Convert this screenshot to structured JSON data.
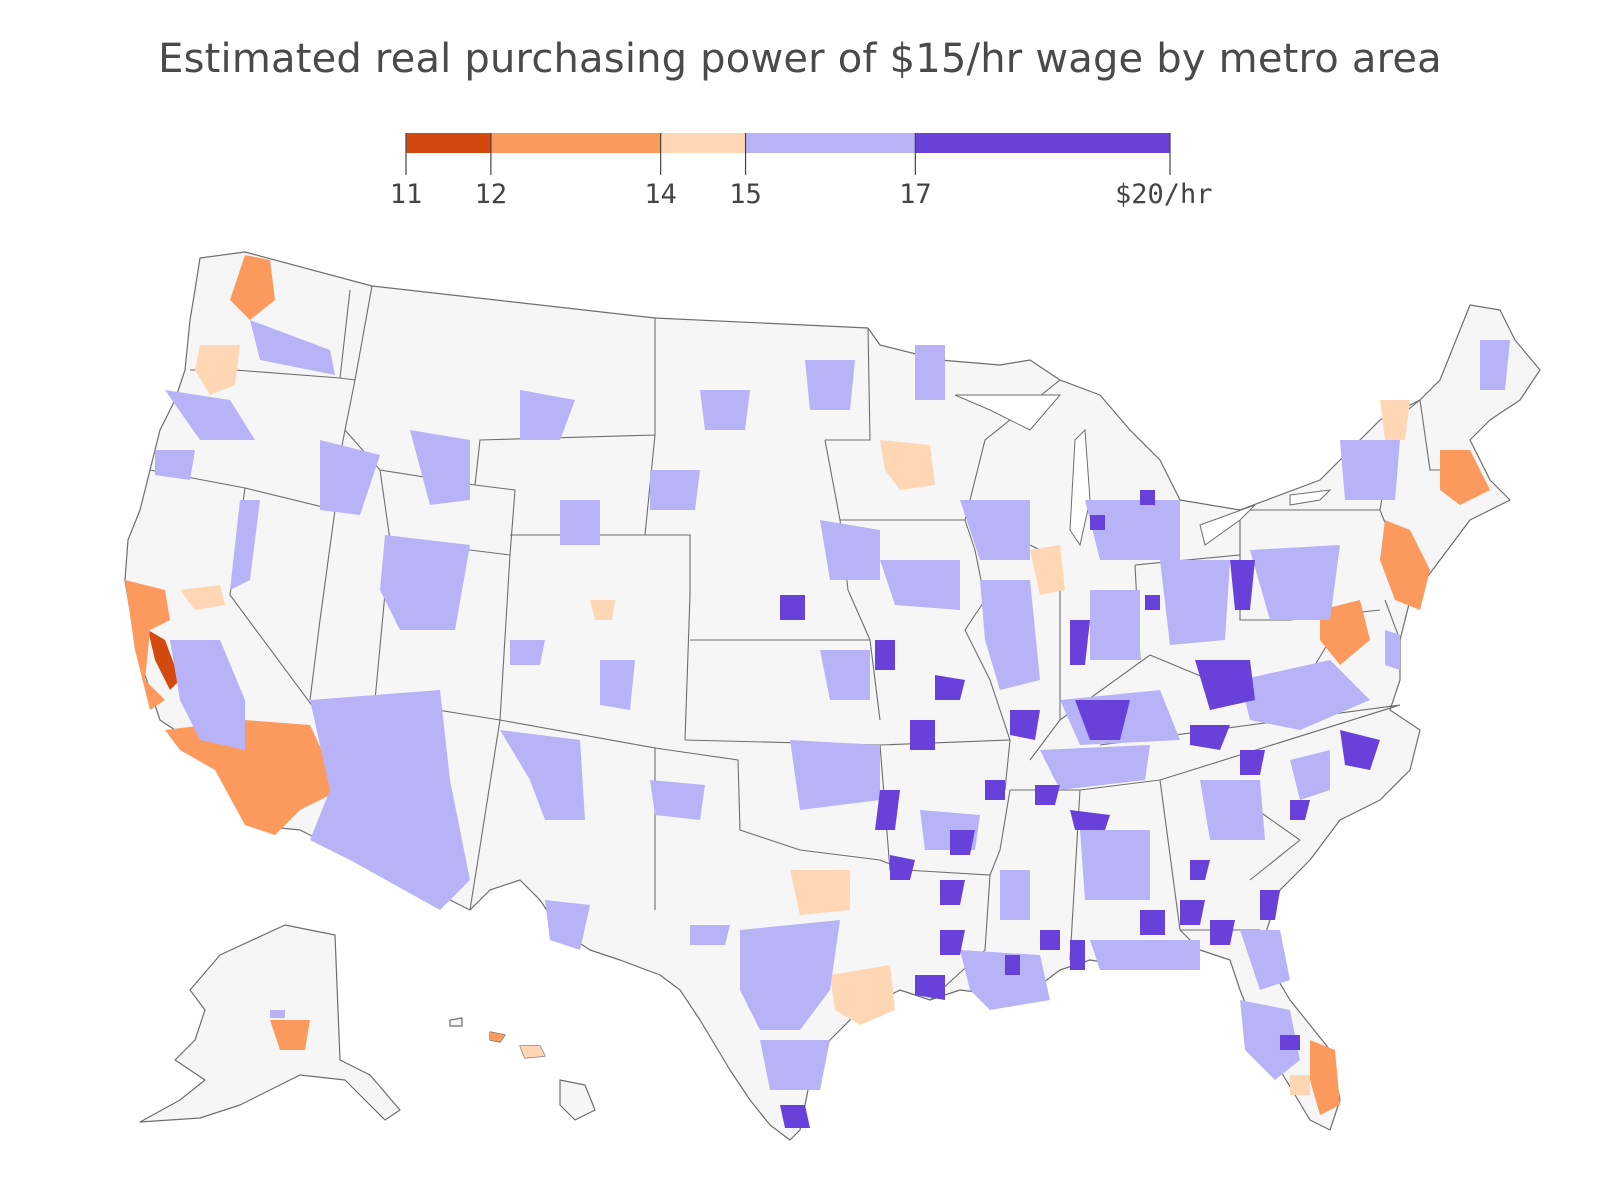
{
  "title": "Estimated real purchasing power of $15/hr wage by metro area",
  "legend": {
    "breaks": [
      11,
      12,
      14,
      15,
      17,
      20
    ],
    "tick_labels": [
      "11",
      "12",
      "14",
      "15",
      "17",
      "$20/hr"
    ],
    "bin_colors": [
      "#d44a0e",
      "#fb9a5c",
      "#ffd7b5",
      "#b8b2f7",
      "#6741d9"
    ]
  },
  "colors": {
    "land": "#f6f6f6",
    "border": "#6e6e6e"
  }
}
